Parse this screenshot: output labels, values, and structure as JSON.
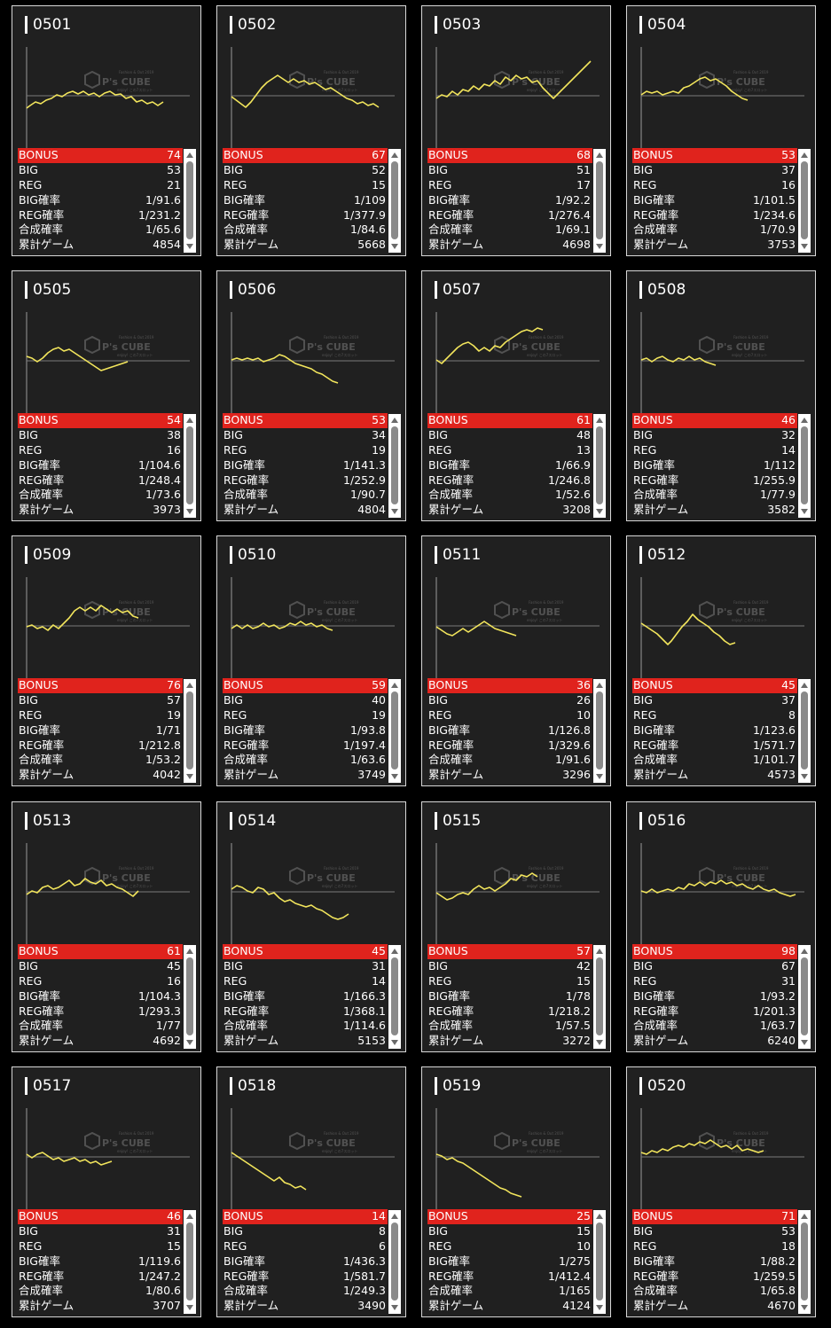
{
  "labels": {
    "bonus": "BONUS",
    "big": "BIG",
    "reg": "REG",
    "big_rate": "BIG確率",
    "reg_rate": "REG確率",
    "total_rate": "合成確率",
    "games": "累計ゲーム"
  },
  "watermark": {
    "brand": "P's CUBE",
    "top_line": "Fashion & Out 2019",
    "bottom_line": "enjoy! この7スロット"
  },
  "colors": {
    "bonus_bar": "#e0231d",
    "graph_line": "#f2e55c",
    "card_bg": "#202020",
    "border": "#d8d8d8"
  },
  "machines": [
    {
      "id": "0501",
      "bonus": "74",
      "big": "53",
      "reg": "21",
      "big_rate": "1/91.6",
      "reg_rate": "1/231.2",
      "total_rate": "1/65.6",
      "games": "4854"
    },
    {
      "id": "0502",
      "bonus": "67",
      "big": "52",
      "reg": "15",
      "big_rate": "1/109",
      "reg_rate": "1/377.9",
      "total_rate": "1/84.6",
      "games": "5668"
    },
    {
      "id": "0503",
      "bonus": "68",
      "big": "51",
      "reg": "17",
      "big_rate": "1/92.2",
      "reg_rate": "1/276.4",
      "total_rate": "1/69.1",
      "games": "4698"
    },
    {
      "id": "0504",
      "bonus": "53",
      "big": "37",
      "reg": "16",
      "big_rate": "1/101.5",
      "reg_rate": "1/234.6",
      "total_rate": "1/70.9",
      "games": "3753"
    },
    {
      "id": "0505",
      "bonus": "54",
      "big": "38",
      "reg": "16",
      "big_rate": "1/104.6",
      "reg_rate": "1/248.4",
      "total_rate": "1/73.6",
      "games": "3973"
    },
    {
      "id": "0506",
      "bonus": "53",
      "big": "34",
      "reg": "19",
      "big_rate": "1/141.3",
      "reg_rate": "1/252.9",
      "total_rate": "1/90.7",
      "games": "4804"
    },
    {
      "id": "0507",
      "bonus": "61",
      "big": "48",
      "reg": "13",
      "big_rate": "1/66.9",
      "reg_rate": "1/246.8",
      "total_rate": "1/52.6",
      "games": "3208"
    },
    {
      "id": "0508",
      "bonus": "46",
      "big": "32",
      "reg": "14",
      "big_rate": "1/112",
      "reg_rate": "1/255.9",
      "total_rate": "1/77.9",
      "games": "3582"
    },
    {
      "id": "0509",
      "bonus": "76",
      "big": "57",
      "reg": "19",
      "big_rate": "1/71",
      "reg_rate": "1/212.8",
      "total_rate": "1/53.2",
      "games": "4042"
    },
    {
      "id": "0510",
      "bonus": "59",
      "big": "40",
      "reg": "19",
      "big_rate": "1/93.8",
      "reg_rate": "1/197.4",
      "total_rate": "1/63.6",
      "games": "3749"
    },
    {
      "id": "0511",
      "bonus": "36",
      "big": "26",
      "reg": "10",
      "big_rate": "1/126.8",
      "reg_rate": "1/329.6",
      "total_rate": "1/91.6",
      "games": "3296"
    },
    {
      "id": "0512",
      "bonus": "45",
      "big": "37",
      "reg": "8",
      "big_rate": "1/123.6",
      "reg_rate": "1/571.7",
      "total_rate": "1/101.7",
      "games": "4573"
    },
    {
      "id": "0513",
      "bonus": "61",
      "big": "45",
      "reg": "16",
      "big_rate": "1/104.3",
      "reg_rate": "1/293.3",
      "total_rate": "1/77",
      "games": "4692"
    },
    {
      "id": "0514",
      "bonus": "45",
      "big": "31",
      "reg": "14",
      "big_rate": "1/166.3",
      "reg_rate": "1/368.1",
      "total_rate": "1/114.6",
      "games": "5153"
    },
    {
      "id": "0515",
      "bonus": "57",
      "big": "42",
      "reg": "15",
      "big_rate": "1/78",
      "reg_rate": "1/218.2",
      "total_rate": "1/57.5",
      "games": "3272"
    },
    {
      "id": "0516",
      "bonus": "98",
      "big": "67",
      "reg": "31",
      "big_rate": "1/93.2",
      "reg_rate": "1/201.3",
      "total_rate": "1/63.7",
      "games": "6240"
    },
    {
      "id": "0517",
      "bonus": "46",
      "big": "31",
      "reg": "15",
      "big_rate": "1/119.6",
      "reg_rate": "1/247.2",
      "total_rate": "1/80.6",
      "games": "3707"
    },
    {
      "id": "0518",
      "bonus": "14",
      "big": "8",
      "reg": "6",
      "big_rate": "1/436.3",
      "reg_rate": "1/581.7",
      "total_rate": "1/249.3",
      "games": "3490"
    },
    {
      "id": "0519",
      "bonus": "25",
      "big": "15",
      "reg": "10",
      "big_rate": "1/275",
      "reg_rate": "1/412.4",
      "total_rate": "1/165",
      "games": "4124"
    },
    {
      "id": "0520",
      "bonus": "71",
      "big": "53",
      "reg": "18",
      "big_rate": "1/88.2",
      "reg_rate": "1/259.5",
      "total_rate": "1/65.8",
      "games": "4670"
    }
  ]
}
